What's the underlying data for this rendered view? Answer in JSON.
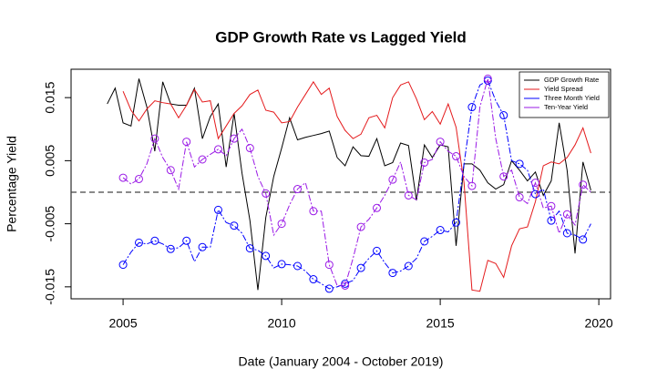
{
  "chart_data": {
    "type": "line",
    "title": "GDP Growth Rate vs Lagged Yield",
    "x_label": "Date (January 2004 - October 2019)",
    "y_label": "Percentage Yield",
    "xlim": [
      2003.36,
      2020.37
    ],
    "ylim": [
      -0.0169,
      0.0195
    ],
    "xticks": [
      2005,
      2010,
      2015,
      2020
    ],
    "yticks": [
      -0.015,
      -0.005,
      0.005,
      0.015
    ],
    "reference_line": 0,
    "legend": "top-right",
    "x": [
      2004.5,
      2004.75,
      2005,
      2005.25,
      2005.5,
      2005.75,
      2006,
      2006.25,
      2006.5,
      2006.75,
      2007,
      2007.25,
      2007.5,
      2007.75,
      2008,
      2008.25,
      2008.5,
      2008.75,
      2009,
      2009.25,
      2009.5,
      2009.75,
      2010,
      2010.25,
      2010.5,
      2010.75,
      2011,
      2011.25,
      2011.5,
      2011.75,
      2012,
      2012.25,
      2012.5,
      2012.75,
      2013,
      2013.25,
      2013.5,
      2013.75,
      2014,
      2014.25,
      2014.5,
      2014.75,
      2015,
      2015.25,
      2015.5,
      2015.75,
      2016,
      2016.25,
      2016.5,
      2016.75,
      2017,
      2017.25,
      2017.5,
      2017.75,
      2018,
      2018.25,
      2018.5,
      2018.75,
      2019,
      2019.25,
      2019.5,
      2019.75
    ],
    "series": [
      {
        "name": "GDP Growth Rate",
        "color": "#000000",
        "dash": false,
        "markers": false,
        "values": [
          0.014,
          0.0165,
          0.011,
          0.0105,
          0.018,
          0.0135,
          0.0065,
          0.0175,
          0.014,
          0.0138,
          0.0138,
          0.0165,
          0.0085,
          0.012,
          0.014,
          0.004,
          0.0125,
          0.003,
          -0.0045,
          -0.0155,
          -0.004,
          0.0025,
          0.007,
          0.0118,
          0.0083,
          0.0087,
          0.009,
          0.0093,
          0.0097,
          0.0055,
          0.0042,
          0.0072,
          0.0058,
          0.0057,
          0.0085,
          0.0042,
          0.0047,
          0.0078,
          0.0074,
          -0.0013,
          0.0075,
          0.0055,
          0.0075,
          0.0072,
          -0.0085,
          0.0045,
          0.0045,
          0.0035,
          0.0015,
          0.0005,
          0.0012,
          0.005,
          0.0035,
          0.0018,
          0.0032,
          -0.0005,
          0.0018,
          0.011,
          0.0035,
          -0.0097,
          0.0048,
          0.0003
        ]
      },
      {
        "name": "Yield Spread",
        "color": "#e41a1c",
        "dash": false,
        "markers": false,
        "values": [
          null,
          null,
          0.016,
          0.013,
          0.0113,
          0.0132,
          0.0145,
          0.0142,
          0.014,
          0.0118,
          0.0138,
          0.0163,
          0.0143,
          0.0145,
          0.0085,
          0.0105,
          0.0125,
          0.0137,
          0.0155,
          0.0162,
          0.013,
          0.0127,
          0.011,
          0.0112,
          0.0135,
          0.0155,
          0.0175,
          0.0155,
          0.0165,
          0.012,
          0.0098,
          0.0085,
          0.0092,
          0.0118,
          0.0122,
          0.0102,
          0.015,
          0.017,
          0.0175,
          0.0148,
          0.0115,
          0.0128,
          0.0108,
          0.014,
          0.0103,
          0.0015,
          -0.0155,
          -0.0157,
          -0.0108,
          -0.0113,
          -0.0135,
          -0.0085,
          -0.0058,
          -0.0055,
          -0.0015,
          0.0042,
          0.0048,
          0.0045,
          0.0055,
          0.0075,
          0.0102,
          0.0062
        ]
      },
      {
        "name": "Three Month Yield",
        "color": "#0000ff",
        "dash": true,
        "markers": true,
        "values": [
          null,
          null,
          -0.0115,
          -0.0095,
          -0.008,
          -0.0082,
          -0.0077,
          -0.0082,
          -0.009,
          -0.0088,
          -0.0077,
          -0.011,
          -0.0087,
          -0.0087,
          -0.0028,
          -0.0048,
          -0.0053,
          -0.0065,
          -0.0089,
          -0.0092,
          -0.0101,
          -0.012,
          -0.0114,
          -0.0115,
          -0.0117,
          -0.0125,
          -0.0138,
          -0.0145,
          -0.0153,
          -0.015,
          -0.0145,
          -0.014,
          -0.012,
          -0.0105,
          -0.0093,
          -0.0112,
          -0.0128,
          -0.0125,
          -0.0117,
          -0.0105,
          -0.0078,
          -0.007,
          -0.006,
          -0.0063,
          -0.0048,
          0.0045,
          0.0135,
          0.017,
          0.0177,
          0.0145,
          0.0122,
          0.005,
          0.0045,
          0.0035,
          -0.0003,
          0.0005,
          -0.0045,
          -0.003,
          -0.0065,
          -0.0068,
          -0.0075,
          -0.005
        ]
      },
      {
        "name": "Ten-Year Yield",
        "color": "#9a19e6",
        "dash": true,
        "markers": true,
        "values": [
          null,
          null,
          0.0023,
          0.0013,
          0.0021,
          0.0045,
          0.0085,
          0.0055,
          0.0035,
          0.0005,
          0.008,
          0.004,
          0.0052,
          0.006,
          0.0068,
          0.0058,
          0.0085,
          0.01,
          0.007,
          0.0025,
          -0.0002,
          -0.0068,
          -0.005,
          -0.002,
          0.0005,
          0.0015,
          -0.003,
          -0.003,
          -0.0115,
          -0.0148,
          -0.0148,
          -0.0105,
          -0.0055,
          -0.0043,
          -0.0025,
          -0.0005,
          0.002,
          0.0048,
          -0.0005,
          -0.0012,
          0.0047,
          0.0052,
          0.008,
          0.0065,
          0.0057,
          0.0025,
          0.001,
          0.0135,
          0.018,
          0.0085,
          0.0025,
          0.0035,
          -0.0008,
          -0.0018,
          0.0015,
          -0.0025,
          -0.0022,
          -0.0065,
          -0.0035,
          -0.0052,
          0.0012,
          0
        ]
      }
    ]
  }
}
